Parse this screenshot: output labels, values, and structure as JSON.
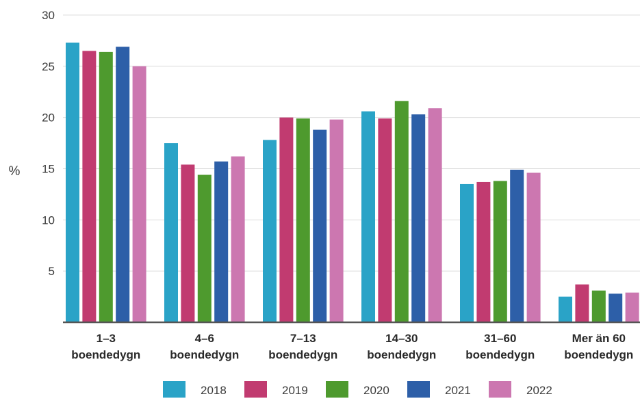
{
  "chart_data": {
    "type": "bar",
    "title": "",
    "xlabel": "",
    "ylabel": "%",
    "ylim": [
      0,
      30
    ],
    "yticks": [
      5,
      10,
      15,
      20,
      25,
      30
    ],
    "grid": true,
    "legend_position": "bottom",
    "categories": [
      [
        "1–3",
        "boendedygn"
      ],
      [
        "4–6",
        "boendedygn"
      ],
      [
        "7–13",
        "boendedygn"
      ],
      [
        "14–30",
        "boendedygn"
      ],
      [
        "31–60",
        "boendedygn"
      ],
      [
        "Mer än 60",
        "boendedygn"
      ]
    ],
    "series": [
      {
        "name": "2018",
        "color": "#2aa3c7",
        "values": [
          27.3,
          17.5,
          17.8,
          20.6,
          13.5,
          2.5
        ]
      },
      {
        "name": "2019",
        "color": "#c13b70",
        "values": [
          26.5,
          15.4,
          20.0,
          19.9,
          13.7,
          3.7
        ]
      },
      {
        "name": "2020",
        "color": "#4e9a2e",
        "values": [
          26.4,
          14.4,
          19.9,
          21.6,
          13.8,
          3.1
        ]
      },
      {
        "name": "2021",
        "color": "#2d5fa8",
        "values": [
          26.9,
          15.7,
          18.8,
          20.3,
          14.9,
          2.8
        ]
      },
      {
        "name": "2022",
        "color": "#cc77b0",
        "values": [
          25.0,
          16.2,
          19.8,
          20.9,
          14.6,
          2.9
        ]
      }
    ]
  }
}
